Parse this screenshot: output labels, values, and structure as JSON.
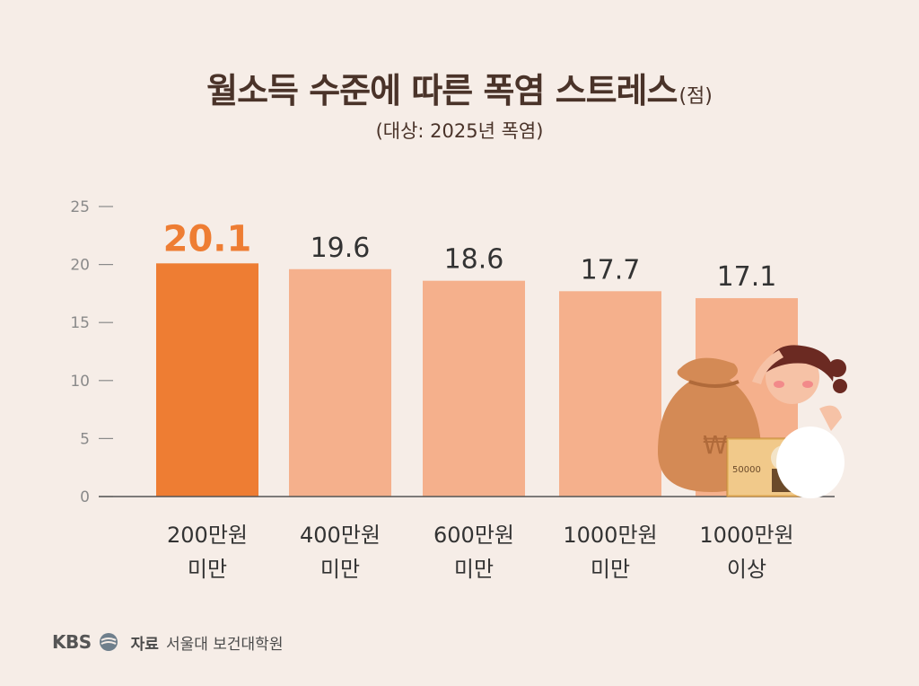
{
  "header": {
    "title": "월소득 수준에 따른 폭염 스트레스",
    "title_unit": "(점)",
    "subtitle": "(대상: 2025년 폭염)"
  },
  "source": {
    "logo": "KBS",
    "label": "자료",
    "text": "서울대 보건대학원"
  },
  "colors": {
    "highlight": "#ee7d33",
    "bar": "#f5b08c",
    "axis": "#555555",
    "tick_text": "#8a8a8a"
  },
  "chart_data": {
    "type": "bar",
    "categories": [
      [
        "200만원",
        "미만"
      ],
      [
        "400만원",
        "미만"
      ],
      [
        "600만원",
        "미만"
      ],
      [
        "1000만원",
        "미만"
      ],
      [
        "1000만원",
        "이상"
      ]
    ],
    "values": [
      20.1,
      19.6,
      18.6,
      17.7,
      17.1
    ],
    "value_labels": [
      "20.1",
      "19.6",
      "18.6",
      "17.7",
      "17.1"
    ],
    "highlight_index": 0,
    "ylim": [
      0,
      25
    ],
    "yticks": [
      0,
      5,
      10,
      15,
      20,
      25
    ],
    "grid": false
  }
}
